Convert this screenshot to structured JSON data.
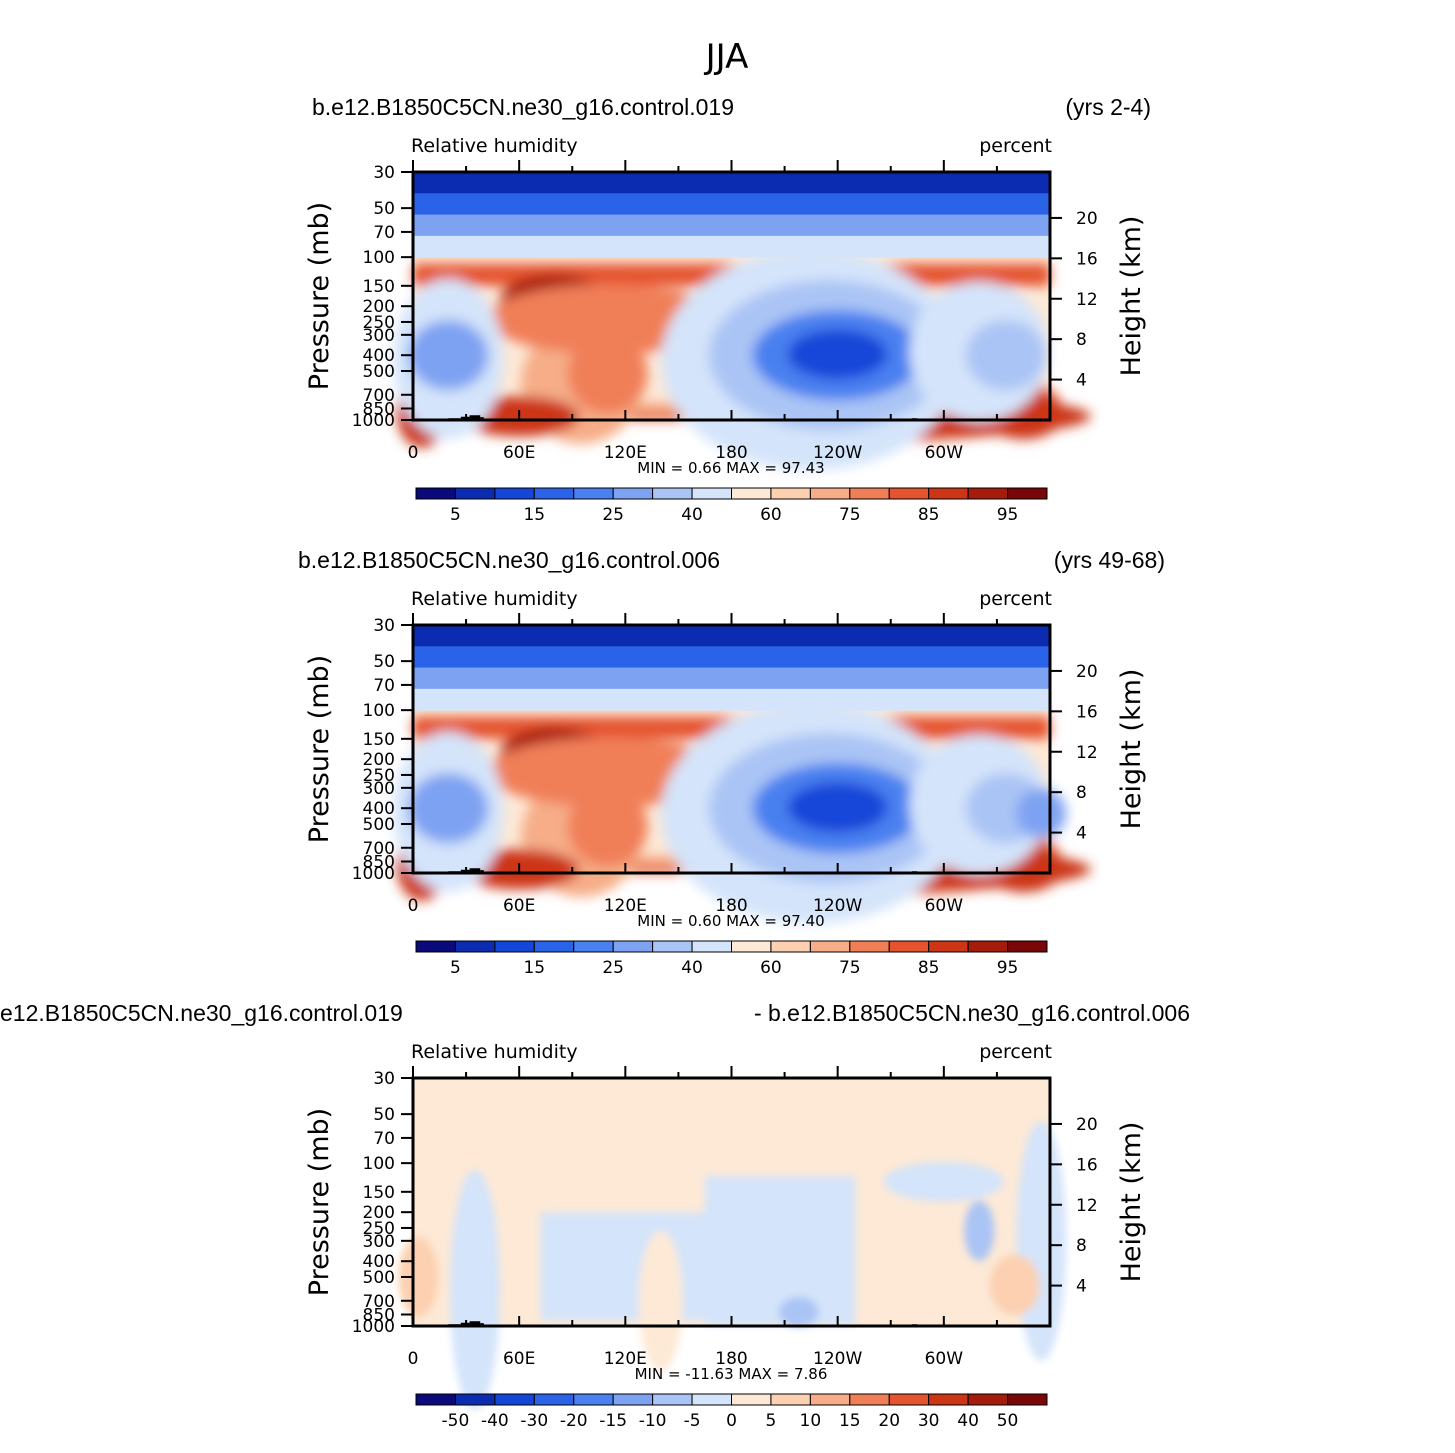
{
  "figure_title": "JJA",
  "chart_data": [
    {
      "type": "heatmap",
      "case_left": "b.e12.B1850C5CN.ne30_g16.control.019",
      "case_right": "(yrs 2-4)",
      "variable": "Relative  humidity",
      "units": "percent",
      "ylabel": "Pressure  (mb)",
      "ylabel_right": "Height  (km)",
      "x_ticks": [
        "0",
        "60E",
        "120E",
        "180",
        "120W",
        "60W"
      ],
      "y_ticks": [
        "30",
        "50",
        "70",
        "100",
        "150",
        "200",
        "250",
        "300",
        "400",
        "500",
        "700",
        "850",
        "1000"
      ],
      "y_ticks_right": [
        "20",
        "16",
        "12",
        "8",
        "4"
      ],
      "stats": "MIN =    0.66   MAX =   97.43",
      "min": 0.66,
      "max": 97.43,
      "colorbar_labels": [
        "5",
        "15",
        "25",
        "40",
        "60",
        "75",
        "85",
        "95"
      ]
    },
    {
      "type": "heatmap",
      "case_left": "b.e12.B1850C5CN.ne30_g16.control.006",
      "case_right": "(yrs 49-68)",
      "variable": "Relative  humidity",
      "units": "percent",
      "ylabel": "Pressure  (mb)",
      "ylabel_right": "Height  (km)",
      "x_ticks": [
        "0",
        "60E",
        "120E",
        "180",
        "120W",
        "60W"
      ],
      "y_ticks": [
        "30",
        "50",
        "70",
        "100",
        "150",
        "200",
        "250",
        "300",
        "400",
        "500",
        "700",
        "850",
        "1000"
      ],
      "y_ticks_right": [
        "20",
        "16",
        "12",
        "8",
        "4"
      ],
      "stats": "MIN =    0.60   MAX =   97.40",
      "min": 0.6,
      "max": 97.4,
      "colorbar_labels": [
        "5",
        "15",
        "25",
        "40",
        "60",
        "75",
        "85",
        "95"
      ]
    },
    {
      "type": "heatmap",
      "case_left": "e12.B1850C5CN.ne30_g16.control.019",
      "case_right": "- b.e12.B1850C5CN.ne30_g16.control.006",
      "variable": "Relative  humidity",
      "units": "percent",
      "ylabel": "Pressure  (mb)",
      "ylabel_right": "Height  (km)",
      "x_ticks": [
        "0",
        "60E",
        "120E",
        "180",
        "120W",
        "60W"
      ],
      "y_ticks": [
        "30",
        "50",
        "70",
        "100",
        "150",
        "200",
        "250",
        "300",
        "400",
        "500",
        "700",
        "850",
        "1000"
      ],
      "y_ticks_right": [
        "20",
        "16",
        "12",
        "8",
        "4"
      ],
      "stats": "MIN = -11.63   MAX =    7.86",
      "min": -11.63,
      "max": 7.86,
      "colorbar_labels": [
        "-50",
        "-40",
        "-30",
        "-20",
        "-15",
        "-10",
        "-5",
        "0",
        "5",
        "10",
        "15",
        "20",
        "30",
        "40",
        "50"
      ]
    }
  ],
  "colorbar_colors": [
    "#0a0a7a",
    "#0b2bb0",
    "#1446d8",
    "#2b63e8",
    "#4a80f0",
    "#7ea2f2",
    "#aac4f5",
    "#d4e4fa",
    "#fde9d6",
    "#fcd0b0",
    "#f6ad88",
    "#f07f58",
    "#e5532f",
    "#cc3516",
    "#a61c0c",
    "#7a0707"
  ]
}
